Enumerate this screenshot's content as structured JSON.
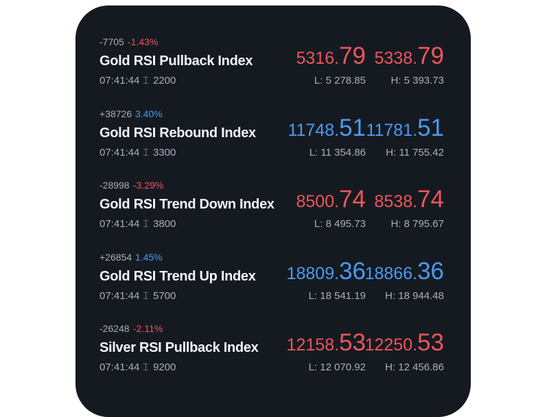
{
  "quotes": [
    {
      "change": "-7705",
      "percent": "-1.43%",
      "name": "Gold RSI Pullback Index",
      "time": "07:41:44",
      "spread": "2200",
      "bid": "5316.79",
      "ask": "5338.79",
      "low": "L: 5 278.85",
      "high": "H: 5 393.73",
      "color": "#f0555b"
    },
    {
      "change": "+38726",
      "percent": "3.40%",
      "name": "Gold RSI Rebound Index",
      "time": "07:41:44",
      "spread": "3300",
      "bid": "11748.51",
      "ask": "11781.51",
      "low": "L: 11 354.86",
      "high": "H: 11 755.42",
      "color": "#4b9bf2"
    },
    {
      "change": "-28998",
      "percent": "-3.29%",
      "name": "Gold RSI Trend Down Index",
      "time": "07:41:44",
      "spread": "3800",
      "bid": "8500.74",
      "ask": "8538.74",
      "low": "L: 8 495.73",
      "high": "H: 8 795.67",
      "color": "#f0555b"
    },
    {
      "change": "+26854",
      "percent": "1.45%",
      "name": "Gold RSI Trend Up Index",
      "time": "07:41:44",
      "spread": "5700",
      "bid": "18809.36",
      "ask": "18866.36",
      "low": "L: 18 541.19",
      "high": "H: 18 944.48",
      "color": "#4b9bf2"
    },
    {
      "change": "-26248",
      "percent": "-2.11%",
      "name": "Silver RSI Pullback Index",
      "time": "07:41:44",
      "spread": "9200",
      "bid": "12158.53",
      "ask": "12250.53",
      "low": "L: 12 070.92",
      "high": "H: 12 456.86",
      "color": "#f0555b"
    }
  ]
}
